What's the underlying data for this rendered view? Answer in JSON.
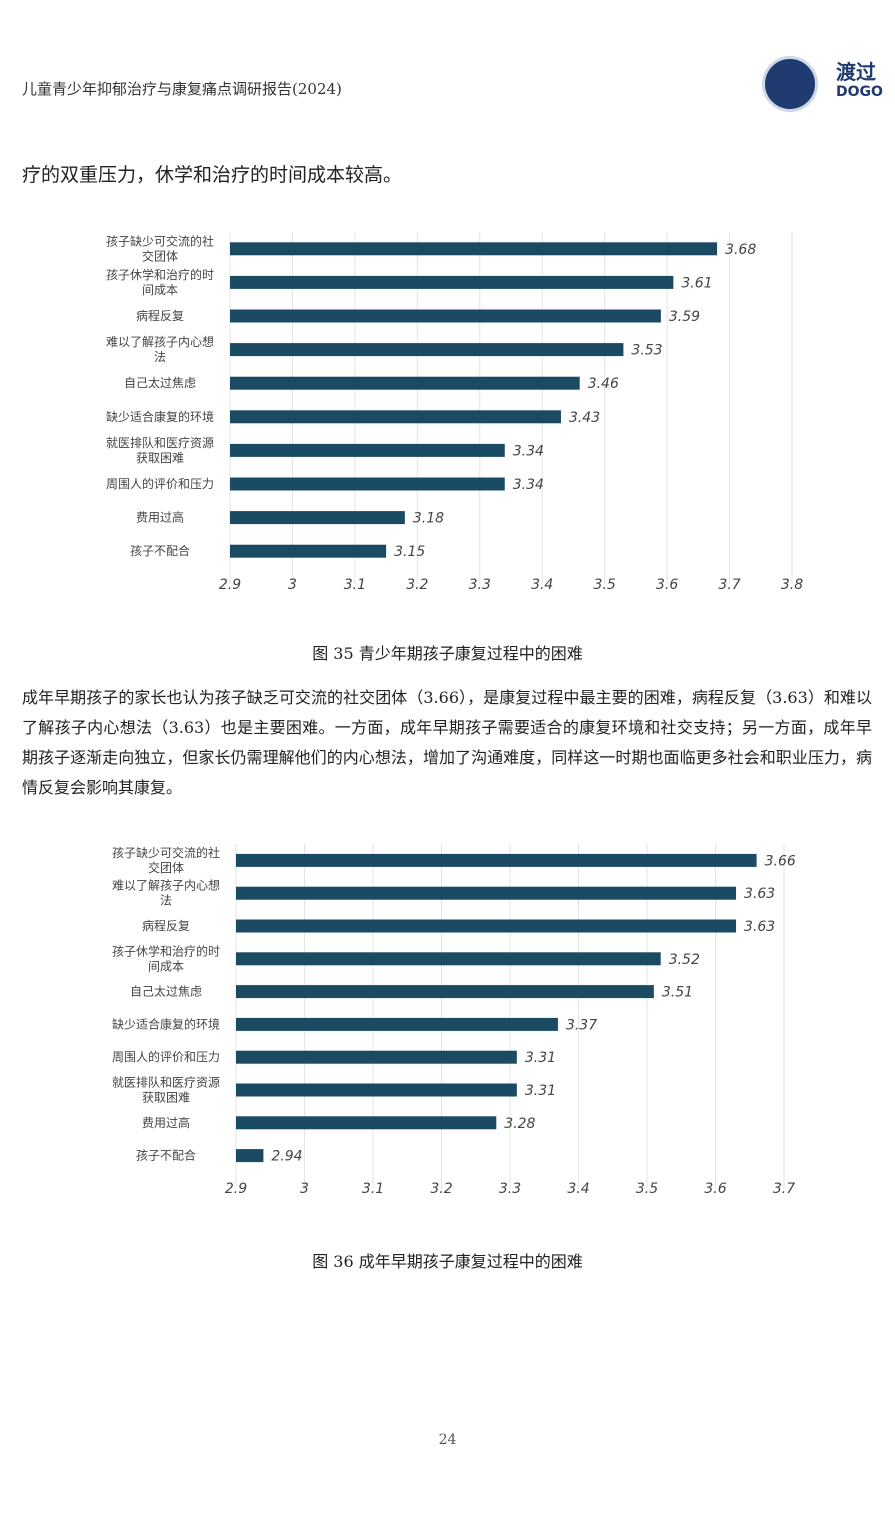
{
  "header": {
    "title": "儿童青少年抑郁治疗与康复痛点调研报告(2024)",
    "logo_text": "渡过",
    "logo_sub": "DOGO"
  },
  "body_line1": "疗的双重压力，休学和治疗的时间成本较高。",
  "caption1": "图 35 青少年期孩子康复过程中的困难",
  "paragraph": "成年早期孩子的家长也认为孩子缺乏可交流的社交团体（3.66），是康复过程中最主要的困难，病程反复（3.63）和难以了解孩子内心想法（3.63）也是主要困难。一方面，成年早期孩子需要适合的康复环境和社交支持；另一方面，成年早期孩子逐渐走向独立，但家长仍需理解他们的内心想法，增加了沟通难度，同样这一时期也面临更多社会和职业压力，病情反复会影响其康复。",
  "caption2": "图 36  成年早期孩子康复过程中的困难",
  "page_number": "24",
  "colors": {
    "bar": "#1b4a63",
    "brand": "#1f3b6f"
  },
  "chart_data": [
    {
      "type": "bar",
      "orientation": "horizontal",
      "categories": [
        [
          "孩子缺少可交流的社",
          "交团体"
        ],
        [
          "孩子休学和治疗的时",
          "间成本"
        ],
        [
          "病程反复"
        ],
        [
          "难以了解孩子内心想",
          "法"
        ],
        [
          "自己太过焦虑"
        ],
        [
          "缺少适合康复的环境"
        ],
        [
          "就医排队和医疗资源",
          "获取困难"
        ],
        [
          "周围人的评价和压力"
        ],
        [
          "费用过高"
        ],
        [
          "孩子不配合"
        ]
      ],
      "values": [
        3.68,
        3.61,
        3.59,
        3.53,
        3.46,
        3.43,
        3.34,
        3.34,
        3.18,
        3.15
      ],
      "value_labels": [
        "3.68",
        "3.61",
        "3.59",
        "3.53",
        "3.46",
        "3.43",
        "3.34",
        "3.34",
        "3.18",
        "3.15"
      ],
      "xlim": [
        2.9,
        3.8
      ],
      "ticks": [
        "2.9",
        "3",
        "3.1",
        "3.2",
        "3.3",
        "3.4",
        "3.5",
        "3.6",
        "3.7",
        "3.8"
      ],
      "grid": true
    },
    {
      "type": "bar",
      "orientation": "horizontal",
      "categories": [
        [
          "孩子缺少可交流的社",
          "交团体"
        ],
        [
          "难以了解孩子内心想",
          "法"
        ],
        [
          "病程反复"
        ],
        [
          "孩子休学和治疗的时",
          "间成本"
        ],
        [
          "自己太过焦虑"
        ],
        [
          "缺少适合康复的环境"
        ],
        [
          "周围人的评价和压力"
        ],
        [
          "就医排队和医疗资源",
          "获取困难"
        ],
        [
          "费用过高"
        ],
        [
          "孩子不配合"
        ]
      ],
      "values": [
        3.66,
        3.63,
        3.63,
        3.52,
        3.51,
        3.37,
        3.31,
        3.31,
        3.28,
        2.94
      ],
      "value_labels": [
        "3.66",
        "3.63",
        "3.63",
        "3.52",
        "3.51",
        "3.37",
        "3.31",
        "3.31",
        "3.28",
        "2.94"
      ],
      "xlim": [
        2.9,
        3.7
      ],
      "ticks": [
        "2.9",
        "3",
        "3.1",
        "3.2",
        "3.3",
        "3.4",
        "3.5",
        "3.6",
        "3.7"
      ],
      "grid": true
    }
  ]
}
